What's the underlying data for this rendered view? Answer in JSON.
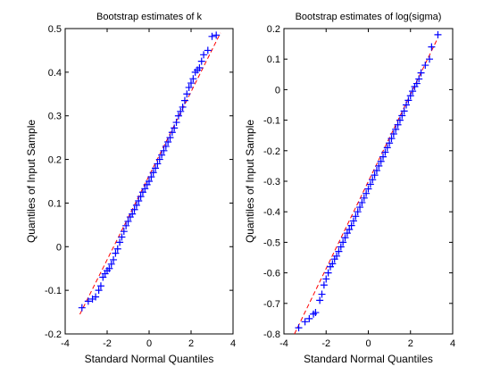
{
  "chart_data": [
    {
      "type": "scatter",
      "title": "Bootstrap estimates of k",
      "xlabel": "Standard Normal Quantiles",
      "ylabel": "Quantiles of Input Sample",
      "xlim": [
        -4,
        4
      ],
      "ylim": [
        -0.2,
        0.5
      ],
      "xticks": [
        "-4",
        "-2",
        "0",
        "2",
        "4"
      ],
      "yticks": [
        "-0.2",
        "-0.1",
        "0",
        "0.1",
        "0.2",
        "0.3",
        "0.4",
        "0.5"
      ],
      "marker_color": "#0000ff",
      "reference_line_color": "#ff0000",
      "reference_line": {
        "x": [
          -3.3,
          3.4
        ],
        "y": [
          -0.155,
          0.49
        ]
      },
      "series": [
        {
          "values": [
            {
              "x": -3.2,
              "y": -0.14
            },
            {
              "x": -2.9,
              "y": -0.125
            },
            {
              "x": -2.7,
              "y": -0.12
            },
            {
              "x": -2.55,
              "y": -0.115
            },
            {
              "x": -2.4,
              "y": -0.1
            },
            {
              "x": -2.3,
              "y": -0.09
            },
            {
              "x": -2.2,
              "y": -0.07
            },
            {
              "x": -2.1,
              "y": -0.062
            },
            {
              "x": -2.0,
              "y": -0.055
            },
            {
              "x": -1.9,
              "y": -0.05
            },
            {
              "x": -1.8,
              "y": -0.04
            },
            {
              "x": -1.7,
              "y": -0.03
            },
            {
              "x": -1.6,
              "y": -0.015
            },
            {
              "x": -1.5,
              "y": -0.005
            },
            {
              "x": -1.4,
              "y": 0.01
            },
            {
              "x": -1.3,
              "y": 0.022
            },
            {
              "x": -1.2,
              "y": 0.035
            },
            {
              "x": -1.1,
              "y": 0.048
            },
            {
              "x": -1.0,
              "y": 0.058
            },
            {
              "x": -0.9,
              "y": 0.068
            },
            {
              "x": -0.8,
              "y": 0.075
            },
            {
              "x": -0.7,
              "y": 0.085
            },
            {
              "x": -0.6,
              "y": 0.095
            },
            {
              "x": -0.5,
              "y": 0.105
            },
            {
              "x": -0.4,
              "y": 0.115
            },
            {
              "x": -0.3,
              "y": 0.125
            },
            {
              "x": -0.2,
              "y": 0.133
            },
            {
              "x": -0.1,
              "y": 0.142
            },
            {
              "x": 0.0,
              "y": 0.15
            },
            {
              "x": 0.1,
              "y": 0.16
            },
            {
              "x": 0.2,
              "y": 0.17
            },
            {
              "x": 0.3,
              "y": 0.18
            },
            {
              "x": 0.4,
              "y": 0.19
            },
            {
              "x": 0.5,
              "y": 0.2
            },
            {
              "x": 0.6,
              "y": 0.21
            },
            {
              "x": 0.7,
              "y": 0.22
            },
            {
              "x": 0.8,
              "y": 0.23
            },
            {
              "x": 0.9,
              "y": 0.24
            },
            {
              "x": 1.0,
              "y": 0.25
            },
            {
              "x": 1.1,
              "y": 0.262
            },
            {
              "x": 1.2,
              "y": 0.272
            },
            {
              "x": 1.3,
              "y": 0.285
            },
            {
              "x": 1.4,
              "y": 0.3
            },
            {
              "x": 1.5,
              "y": 0.31
            },
            {
              "x": 1.6,
              "y": 0.32
            },
            {
              "x": 1.7,
              "y": 0.335
            },
            {
              "x": 1.8,
              "y": 0.35
            },
            {
              "x": 1.9,
              "y": 0.365
            },
            {
              "x": 2.0,
              "y": 0.375
            },
            {
              "x": 2.1,
              "y": 0.385
            },
            {
              "x": 2.2,
              "y": 0.4
            },
            {
              "x": 2.3,
              "y": 0.405
            },
            {
              "x": 2.4,
              "y": 0.41
            },
            {
              "x": 2.5,
              "y": 0.425
            },
            {
              "x": 2.6,
              "y": 0.44
            },
            {
              "x": 2.8,
              "y": 0.45
            },
            {
              "x": 3.0,
              "y": 0.482
            },
            {
              "x": 3.2,
              "y": 0.485
            }
          ]
        }
      ]
    },
    {
      "type": "scatter",
      "title": "Bootstrap estimates of log(sigma)",
      "xlabel": "Standard Normal Quantiles",
      "ylabel": "Quantiles of Input Sample",
      "xlim": [
        -4,
        4
      ],
      "ylim": [
        -0.8,
        0.2
      ],
      "xticks": [
        "-4",
        "-2",
        "0",
        "2",
        "4"
      ],
      "yticks": [
        "-0.8",
        "-0.7",
        "-0.6",
        "-0.5",
        "-0.4",
        "-0.3",
        "-0.2",
        "-0.1",
        "0",
        "0.1",
        "0.2"
      ],
      "marker_color": "#0000ff",
      "reference_line_color": "#ff0000",
      "reference_line": {
        "x": [
          -3.5,
          3.3
        ],
        "y": [
          -0.8,
          0.17
        ]
      },
      "series": [
        {
          "values": [
            {
              "x": -3.3,
              "y": -0.78
            },
            {
              "x": -3.0,
              "y": -0.76
            },
            {
              "x": -2.8,
              "y": -0.75
            },
            {
              "x": -2.6,
              "y": -0.735
            },
            {
              "x": -2.5,
              "y": -0.73
            },
            {
              "x": -2.3,
              "y": -0.69
            },
            {
              "x": -2.2,
              "y": -0.67
            },
            {
              "x": -2.1,
              "y": -0.64
            },
            {
              "x": -2.0,
              "y": -0.62
            },
            {
              "x": -1.9,
              "y": -0.6
            },
            {
              "x": -1.8,
              "y": -0.58
            },
            {
              "x": -1.7,
              "y": -0.57
            },
            {
              "x": -1.6,
              "y": -0.555
            },
            {
              "x": -1.5,
              "y": -0.545
            },
            {
              "x": -1.4,
              "y": -0.53
            },
            {
              "x": -1.3,
              "y": -0.515
            },
            {
              "x": -1.2,
              "y": -0.5
            },
            {
              "x": -1.1,
              "y": -0.485
            },
            {
              "x": -1.0,
              "y": -0.47
            },
            {
              "x": -0.9,
              "y": -0.458
            },
            {
              "x": -0.8,
              "y": -0.445
            },
            {
              "x": -0.7,
              "y": -0.43
            },
            {
              "x": -0.6,
              "y": -0.415
            },
            {
              "x": -0.5,
              "y": -0.4
            },
            {
              "x": -0.4,
              "y": -0.385
            },
            {
              "x": -0.3,
              "y": -0.37
            },
            {
              "x": -0.2,
              "y": -0.355
            },
            {
              "x": -0.1,
              "y": -0.34
            },
            {
              "x": 0.0,
              "y": -0.325
            },
            {
              "x": 0.1,
              "y": -0.31
            },
            {
              "x": 0.2,
              "y": -0.295
            },
            {
              "x": 0.3,
              "y": -0.28
            },
            {
              "x": 0.4,
              "y": -0.265
            },
            {
              "x": 0.5,
              "y": -0.25
            },
            {
              "x": 0.6,
              "y": -0.235
            },
            {
              "x": 0.7,
              "y": -0.22
            },
            {
              "x": 0.8,
              "y": -0.205
            },
            {
              "x": 0.9,
              "y": -0.19
            },
            {
              "x": 1.0,
              "y": -0.175
            },
            {
              "x": 1.1,
              "y": -0.16
            },
            {
              "x": 1.2,
              "y": -0.145
            },
            {
              "x": 1.3,
              "y": -0.13
            },
            {
              "x": 1.4,
              "y": -0.115
            },
            {
              "x": 1.5,
              "y": -0.1
            },
            {
              "x": 1.6,
              "y": -0.085
            },
            {
              "x": 1.7,
              "y": -0.07
            },
            {
              "x": 1.8,
              "y": -0.05
            },
            {
              "x": 1.9,
              "y": -0.035
            },
            {
              "x": 2.0,
              "y": -0.02
            },
            {
              "x": 2.1,
              "y": -0.005
            },
            {
              "x": 2.2,
              "y": 0.01
            },
            {
              "x": 2.3,
              "y": 0.02
            },
            {
              "x": 2.4,
              "y": 0.035
            },
            {
              "x": 2.5,
              "y": 0.055
            },
            {
              "x": 2.7,
              "y": 0.08
            },
            {
              "x": 2.9,
              "y": 0.1
            },
            {
              "x": 3.0,
              "y": 0.14
            },
            {
              "x": 3.3,
              "y": 0.18
            }
          ]
        }
      ]
    }
  ]
}
